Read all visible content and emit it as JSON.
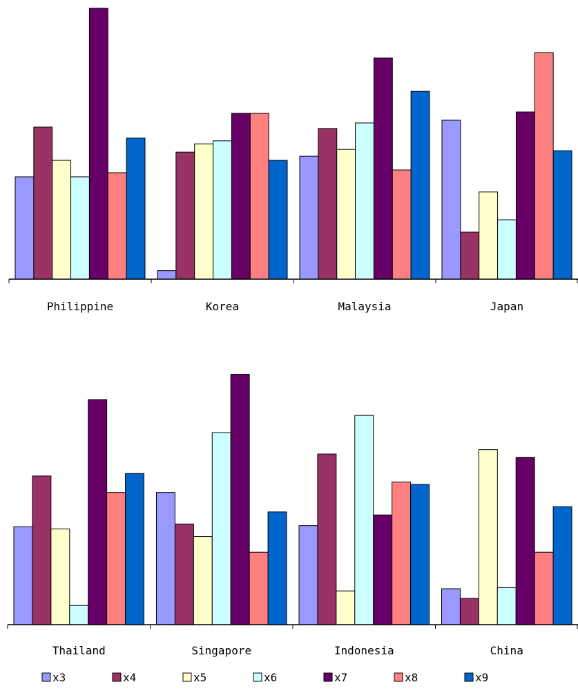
{
  "chart_data": [
    {
      "type": "bar",
      "categories": [
        "Philippine",
        "Korea",
        "Malaysia",
        "Japan"
      ],
      "ylim": [
        0,
        100
      ],
      "grid": false,
      "series": [
        {
          "name": "x3",
          "color": "#9999ff",
          "values": [
            37.2,
            3.1,
            44.7,
            57.8
          ]
        },
        {
          "name": "x4",
          "color": "#993366",
          "values": [
            55.3,
            46.2,
            54.8,
            17.1
          ]
        },
        {
          "name": "x5",
          "color": "#ffffcc",
          "values": [
            43.2,
            49.2,
            47.2,
            31.7
          ]
        },
        {
          "name": "x6",
          "color": "#ccffff",
          "values": [
            37.2,
            50.3,
            56.8,
            21.6
          ]
        },
        {
          "name": "x7",
          "color": "#660066",
          "values": [
            98.5,
            60.3,
            80.4,
            60.8
          ]
        },
        {
          "name": "x8",
          "color": "#ff8080",
          "values": [
            38.7,
            60.3,
            39.7,
            82.4
          ]
        },
        {
          "name": "x9",
          "color": "#0066cc",
          "values": [
            51.3,
            43.2,
            68.3,
            46.7
          ]
        }
      ]
    },
    {
      "type": "bar",
      "categories": [
        "Thailand",
        "Singapore",
        "Indonesia",
        "China"
      ],
      "ylim": [
        0,
        100
      ],
      "grid": false,
      "series": [
        {
          "name": "x3",
          "color": "#9999ff",
          "values": [
            35.7,
            48.2,
            36.1,
            13.1
          ]
        },
        {
          "name": "x4",
          "color": "#993366",
          "values": [
            54.2,
            36.7,
            62.2,
            9.6
          ]
        },
        {
          "name": "x5",
          "color": "#ffffcc",
          "values": [
            34.9,
            32.1,
            12.3,
            63.8
          ]
        },
        {
          "name": "x6",
          "color": "#ccffff",
          "values": [
            7.0,
            70.0,
            76.3,
            13.5
          ]
        },
        {
          "name": "x7",
          "color": "#660066",
          "values": [
            82.0,
            91.3,
            40.0,
            61.0
          ]
        },
        {
          "name": "x8",
          "color": "#ff8080",
          "values": [
            48.2,
            26.4,
            52.0,
            26.4
          ]
        },
        {
          "name": "x9",
          "color": "#0066cc",
          "values": [
            55.1,
            41.1,
            51.1,
            43.0
          ]
        }
      ]
    }
  ],
  "legend": {
    "items": [
      {
        "label": "x3",
        "color": "#9999ff"
      },
      {
        "label": "x4",
        "color": "#993366"
      },
      {
        "label": "x5",
        "color": "#ffffcc"
      },
      {
        "label": "x6",
        "color": "#ccffff"
      },
      {
        "label": "x7",
        "color": "#660066"
      },
      {
        "label": "x8",
        "color": "#ff8080"
      },
      {
        "label": "x9",
        "color": "#0066cc"
      }
    ]
  }
}
